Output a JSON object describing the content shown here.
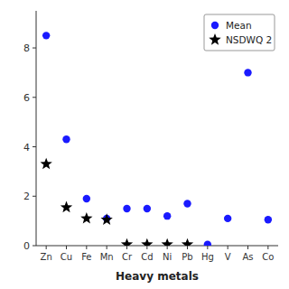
{
  "chart_data": {
    "type": "scatter",
    "xlabel": "Heavy metals",
    "categories": [
      "Zn",
      "Cu",
      "Fe",
      "Mn",
      "Cr",
      "Cd",
      "Ni",
      "Pb",
      "Hg",
      "V",
      "As",
      "Co"
    ],
    "series": [
      {
        "name": "Mean",
        "color": "#1a1aff",
        "marker": "circle",
        "values": [
          8.5,
          4.3,
          1.9,
          1.1,
          1.5,
          1.5,
          1.2,
          1.7,
          0.05,
          1.1,
          7.0,
          1.05
        ]
      },
      {
        "name": "NSDWQ 2",
        "color": "#000000",
        "marker": "star",
        "values": [
          3.3,
          1.55,
          1.1,
          1.05,
          0.05,
          0.05,
          0.05,
          0.05,
          null,
          null,
          null,
          null
        ]
      }
    ],
    "ylim": [
      0,
      9.5
    ],
    "yticks": [
      0,
      2,
      4,
      6,
      8
    ],
    "legend": "upper right",
    "grid": false
  }
}
